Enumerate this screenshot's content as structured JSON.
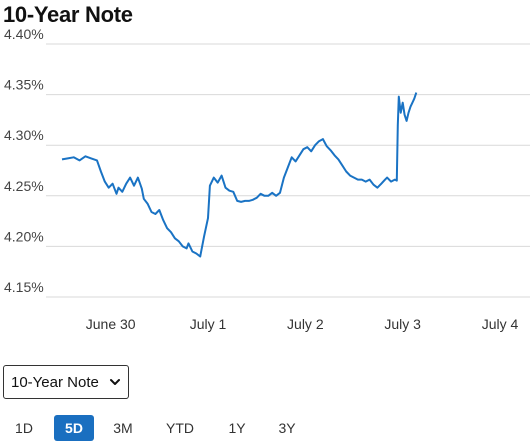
{
  "title": "10-Year Note",
  "selector": {
    "selected": "10-Year Note"
  },
  "ranges": [
    "1D",
    "5D",
    "3M",
    "YTD",
    "1Y",
    "3Y"
  ],
  "active_range": "5D",
  "colors": {
    "line": "#1a73c4",
    "grid": "#d9d9d9",
    "active": "#1a6fc0"
  },
  "chart_data": {
    "type": "line",
    "title": "10-Year Note",
    "ylim": [
      4.15,
      4.4
    ],
    "yticks": [
      "4.40%",
      "4.35%",
      "4.30%",
      "4.25%",
      "4.20%",
      "4.15%"
    ],
    "xlim": [
      0,
      4.5
    ],
    "xticks": [
      {
        "label": "June 30",
        "x": 0.5
      },
      {
        "label": "July 1",
        "x": 1.5
      },
      {
        "label": "July 2",
        "x": 2.5
      },
      {
        "label": "July 3",
        "x": 3.5
      },
      {
        "label": "July 4",
        "x": 4.5
      }
    ],
    "grid": true,
    "series": [
      {
        "values": [
          [
            0.0,
            4.286
          ],
          [
            0.06,
            4.287
          ],
          [
            0.12,
            4.288
          ],
          [
            0.18,
            4.285
          ],
          [
            0.24,
            4.289
          ],
          [
            0.3,
            4.287
          ],
          [
            0.36,
            4.285
          ],
          [
            0.4,
            4.274
          ],
          [
            0.44,
            4.264
          ],
          [
            0.48,
            4.258
          ],
          [
            0.52,
            4.262
          ],
          [
            0.56,
            4.252
          ],
          [
            0.58,
            4.258
          ],
          [
            0.62,
            4.254
          ],
          [
            0.66,
            4.262
          ],
          [
            0.7,
            4.268
          ],
          [
            0.74,
            4.26
          ],
          [
            0.78,
            4.268
          ],
          [
            0.82,
            4.257
          ],
          [
            0.84,
            4.247
          ],
          [
            0.88,
            4.242
          ],
          [
            0.92,
            4.234
          ],
          [
            0.96,
            4.232
          ],
          [
            1.0,
            4.236
          ],
          [
            1.04,
            4.226
          ],
          [
            1.08,
            4.218
          ],
          [
            1.12,
            4.214
          ],
          [
            1.16,
            4.208
          ],
          [
            1.2,
            4.205
          ],
          [
            1.24,
            4.2
          ],
          [
            1.28,
            4.198
          ],
          [
            1.3,
            4.203
          ],
          [
            1.34,
            4.195
          ],
          [
            1.38,
            4.193
          ],
          [
            1.42,
            4.19
          ],
          [
            1.46,
            4.21
          ],
          [
            1.5,
            4.228
          ],
          [
            1.52,
            4.26
          ],
          [
            1.56,
            4.268
          ],
          [
            1.6,
            4.263
          ],
          [
            1.64,
            4.27
          ],
          [
            1.68,
            4.258
          ],
          [
            1.72,
            4.255
          ],
          [
            1.76,
            4.254
          ],
          [
            1.8,
            4.245
          ],
          [
            1.84,
            4.244
          ],
          [
            1.88,
            4.245
          ],
          [
            1.92,
            4.245
          ],
          [
            1.96,
            4.246
          ],
          [
            2.0,
            4.248
          ],
          [
            2.04,
            4.252
          ],
          [
            2.08,
            4.25
          ],
          [
            2.12,
            4.25
          ],
          [
            2.16,
            4.253
          ],
          [
            2.2,
            4.25
          ],
          [
            2.24,
            4.253
          ],
          [
            2.28,
            4.268
          ],
          [
            2.32,
            4.278
          ],
          [
            2.36,
            4.288
          ],
          [
            2.4,
            4.284
          ],
          [
            2.44,
            4.29
          ],
          [
            2.48,
            4.296
          ],
          [
            2.52,
            4.298
          ],
          [
            2.56,
            4.294
          ],
          [
            2.6,
            4.3
          ],
          [
            2.64,
            4.304
          ],
          [
            2.68,
            4.306
          ],
          [
            2.72,
            4.299
          ],
          [
            2.76,
            4.295
          ],
          [
            2.8,
            4.29
          ],
          [
            2.84,
            4.286
          ],
          [
            2.88,
            4.28
          ],
          [
            2.92,
            4.274
          ],
          [
            2.96,
            4.27
          ],
          [
            3.0,
            4.268
          ],
          [
            3.04,
            4.266
          ],
          [
            3.08,
            4.266
          ],
          [
            3.12,
            4.264
          ],
          [
            3.16,
            4.266
          ],
          [
            3.2,
            4.261
          ],
          [
            3.24,
            4.258
          ],
          [
            3.28,
            4.262
          ],
          [
            3.32,
            4.266
          ],
          [
            3.34,
            4.268
          ],
          [
            3.38,
            4.264
          ],
          [
            3.42,
            4.266
          ],
          [
            3.44,
            4.265
          ],
          [
            3.45,
            4.32
          ],
          [
            3.46,
            4.348
          ],
          [
            3.48,
            4.332
          ],
          [
            3.5,
            4.342
          ],
          [
            3.52,
            4.33
          ],
          [
            3.54,
            4.324
          ],
          [
            3.56,
            4.332
          ],
          [
            3.58,
            4.338
          ],
          [
            3.6,
            4.342
          ],
          [
            3.62,
            4.346
          ],
          [
            3.64,
            4.352
          ]
        ]
      }
    ]
  }
}
